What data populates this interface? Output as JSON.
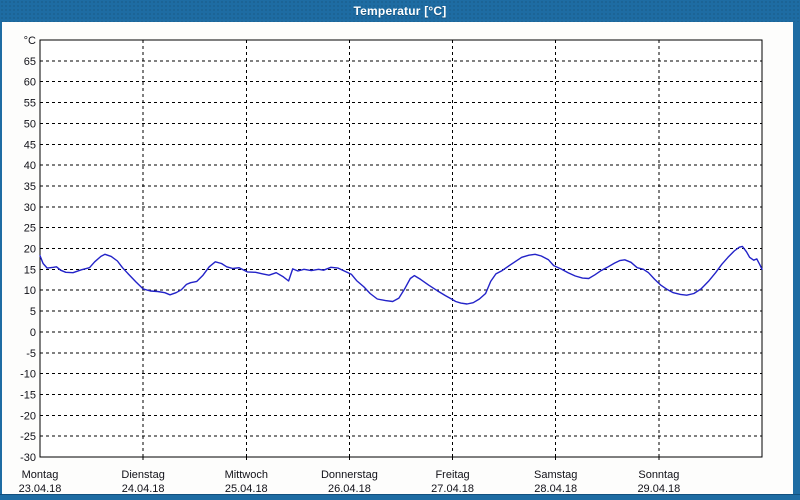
{
  "window": {
    "title": "Temperatur [°C]",
    "titlebar_color": "#1e6ca3",
    "frame_dark_color": "#13507e",
    "background_color": "#fdfdfc"
  },
  "chart_data": {
    "type": "line",
    "title": "Temperatur [°C]",
    "y_unit_label": "°C",
    "ylabel": "Temperatur",
    "ylim": [
      -30,
      70
    ],
    "y_tick_step": 5,
    "grid": "black dashed, horizontal every 5 units, vertical at each day boundary",
    "legend": "none",
    "plot_bg": "#ffffff",
    "axis_color": "#000000",
    "line_color": "#2323c8",
    "y_ticks": [
      {
        "v": 70,
        "label": "°C"
      },
      {
        "v": 65,
        "label": "65"
      },
      {
        "v": 60,
        "label": "60"
      },
      {
        "v": 55,
        "label": "55"
      },
      {
        "v": 50,
        "label": "50"
      },
      {
        "v": 45,
        "label": "45"
      },
      {
        "v": 40,
        "label": "40"
      },
      {
        "v": 35,
        "label": "35"
      },
      {
        "v": 30,
        "label": "30"
      },
      {
        "v": 25,
        "label": "25"
      },
      {
        "v": 20,
        "label": "20"
      },
      {
        "v": 15,
        "label": "15"
      },
      {
        "v": 10,
        "label": "10"
      },
      {
        "v": 5,
        "label": "5"
      },
      {
        "v": 0,
        "label": "0"
      },
      {
        "v": -5,
        "label": "-5"
      },
      {
        "v": -10,
        "label": "-10"
      },
      {
        "v": -15,
        "label": "-15"
      },
      {
        "v": -20,
        "label": "-20"
      },
      {
        "v": -25,
        "label": "-25"
      },
      {
        "v": -30,
        "label": "-30"
      }
    ],
    "x_days": [
      {
        "name": "Montag",
        "date": "23.04.18"
      },
      {
        "name": "Dienstag",
        "date": "24.04.18"
      },
      {
        "name": "Mittwoch",
        "date": "25.04.18"
      },
      {
        "name": "Donnerstag",
        "date": "26.04.18"
      },
      {
        "name": "Freitag",
        "date": "27.04.18"
      },
      {
        "name": "Samstag",
        "date": "28.04.18"
      },
      {
        "name": "Sonntag",
        "date": "29.04.18"
      }
    ],
    "series": [
      {
        "name": "Temperatur",
        "color": "#2323c8",
        "x_unit": "days since Montag 23.04.18 00:00",
        "points": [
          [
            0.0,
            18.3
          ],
          [
            0.03,
            16.4
          ],
          [
            0.07,
            15.3
          ],
          [
            0.13,
            15.5
          ],
          [
            0.16,
            15.6
          ],
          [
            0.2,
            14.8
          ],
          [
            0.25,
            14.3
          ],
          [
            0.32,
            14.2
          ],
          [
            0.4,
            14.9
          ],
          [
            0.48,
            15.4
          ],
          [
            0.53,
            16.8
          ],
          [
            0.59,
            18.1
          ],
          [
            0.63,
            18.6
          ],
          [
            0.69,
            18.1
          ],
          [
            0.75,
            17.0
          ],
          [
            0.8,
            15.4
          ],
          [
            0.86,
            13.8
          ],
          [
            0.93,
            12.0
          ],
          [
            1.0,
            10.3
          ],
          [
            1.07,
            9.8
          ],
          [
            1.14,
            9.7
          ],
          [
            1.21,
            9.4
          ],
          [
            1.26,
            8.9
          ],
          [
            1.32,
            9.4
          ],
          [
            1.37,
            10.1
          ],
          [
            1.42,
            11.4
          ],
          [
            1.46,
            11.8
          ],
          [
            1.52,
            12.1
          ],
          [
            1.58,
            13.6
          ],
          [
            1.64,
            15.6
          ],
          [
            1.7,
            16.8
          ],
          [
            1.76,
            16.4
          ],
          [
            1.81,
            15.6
          ],
          [
            1.87,
            15.2
          ],
          [
            1.93,
            15.4
          ],
          [
            2.01,
            14.4
          ],
          [
            2.09,
            14.3
          ],
          [
            2.16,
            13.9
          ],
          [
            2.22,
            13.6
          ],
          [
            2.29,
            14.2
          ],
          [
            2.36,
            13.2
          ],
          [
            2.41,
            12.2
          ],
          [
            2.45,
            15.1
          ],
          [
            2.5,
            14.6
          ],
          [
            2.56,
            15.0
          ],
          [
            2.63,
            14.7
          ],
          [
            2.7,
            15.0
          ],
          [
            2.75,
            14.8
          ],
          [
            2.82,
            15.5
          ],
          [
            2.89,
            15.3
          ],
          [
            2.95,
            14.6
          ],
          [
            3.02,
            13.8
          ],
          [
            3.07,
            12.3
          ],
          [
            3.14,
            10.8
          ],
          [
            3.2,
            9.2
          ],
          [
            3.27,
            7.9
          ],
          [
            3.35,
            7.5
          ],
          [
            3.42,
            7.3
          ],
          [
            3.48,
            8.1
          ],
          [
            3.54,
            10.5
          ],
          [
            3.59,
            12.8
          ],
          [
            3.63,
            13.5
          ],
          [
            3.69,
            12.6
          ],
          [
            3.77,
            11.2
          ],
          [
            3.85,
            9.9
          ],
          [
            3.93,
            8.7
          ],
          [
            3.99,
            7.9
          ],
          [
            4.03,
            7.3
          ],
          [
            4.08,
            6.9
          ],
          [
            4.14,
            6.7
          ],
          [
            4.2,
            7.0
          ],
          [
            4.26,
            7.9
          ],
          [
            4.32,
            9.2
          ],
          [
            4.37,
            12.1
          ],
          [
            4.42,
            13.9
          ],
          [
            4.48,
            14.7
          ],
          [
            4.55,
            15.9
          ],
          [
            4.61,
            16.9
          ],
          [
            4.67,
            17.9
          ],
          [
            4.74,
            18.4
          ],
          [
            4.8,
            18.6
          ],
          [
            4.86,
            18.2
          ],
          [
            4.93,
            17.3
          ],
          [
            4.98,
            15.9
          ],
          [
            5.05,
            15.1
          ],
          [
            5.12,
            14.2
          ],
          [
            5.19,
            13.4
          ],
          [
            5.26,
            12.9
          ],
          [
            5.32,
            12.8
          ],
          [
            5.38,
            13.7
          ],
          [
            5.44,
            14.7
          ],
          [
            5.5,
            15.5
          ],
          [
            5.57,
            16.5
          ],
          [
            5.62,
            17.1
          ],
          [
            5.67,
            17.3
          ],
          [
            5.73,
            16.7
          ],
          [
            5.79,
            15.4
          ],
          [
            5.85,
            15.0
          ],
          [
            5.9,
            14.2
          ],
          [
            5.96,
            12.6
          ],
          [
            6.02,
            11.2
          ],
          [
            6.08,
            10.2
          ],
          [
            6.14,
            9.4
          ],
          [
            6.21,
            9.0
          ],
          [
            6.27,
            8.8
          ],
          [
            6.34,
            9.2
          ],
          [
            6.41,
            10.3
          ],
          [
            6.48,
            12.1
          ],
          [
            6.55,
            14.2
          ],
          [
            6.61,
            16.2
          ],
          [
            6.67,
            17.9
          ],
          [
            6.73,
            19.4
          ],
          [
            6.78,
            20.3
          ],
          [
            6.81,
            20.5
          ],
          [
            6.85,
            19.2
          ],
          [
            6.88,
            17.9
          ],
          [
            6.92,
            17.2
          ],
          [
            6.95,
            17.5
          ],
          [
            6.98,
            16.1
          ],
          [
            7.0,
            15.0
          ]
        ]
      }
    ]
  }
}
